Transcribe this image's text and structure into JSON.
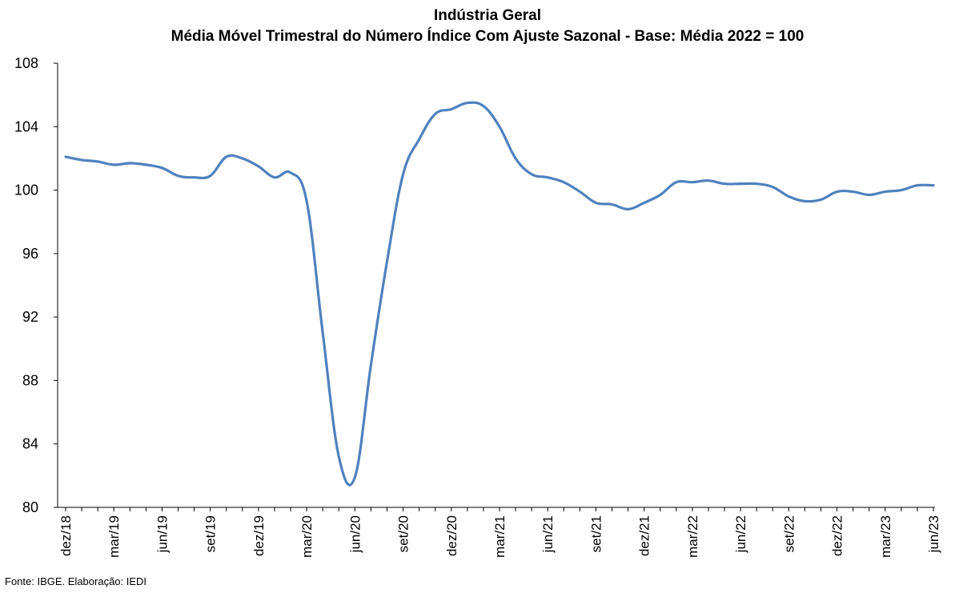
{
  "chart_data": {
    "type": "line",
    "title": "Indústria Geral",
    "subtitle": "Média Móvel Trimestral do Número Índice Com Ajuste Sazonal - Base: Média 2022 = 100",
    "xlabel": "",
    "ylabel": "",
    "ylim": [
      80,
      108
    ],
    "yticks": [
      80,
      84,
      88,
      92,
      96,
      100,
      104,
      108
    ],
    "grid": false,
    "legend": "none",
    "line_color": "#4F81BD",
    "x": [
      "dez/18",
      "jan/19",
      "fev/19",
      "mar/19",
      "abr/19",
      "mai/19",
      "jun/19",
      "jul/19",
      "ago/19",
      "set/19",
      "out/19",
      "nov/19",
      "dez/19",
      "jan/20",
      "fev/20",
      "mar/20",
      "abr/20",
      "mai/20",
      "jun/20",
      "jul/20",
      "ago/20",
      "set/20",
      "out/20",
      "nov/20",
      "dez/20",
      "jan/21",
      "fev/21",
      "mar/21",
      "abr/21",
      "mai/21",
      "jun/21",
      "jul/21",
      "ago/21",
      "set/21",
      "out/21",
      "nov/21",
      "dez/21",
      "jan/22",
      "fev/22",
      "mar/22",
      "abr/22",
      "mai/22",
      "jun/22",
      "jul/22",
      "ago/22",
      "set/22",
      "out/22",
      "nov/22",
      "dez/22",
      "jan/23",
      "fev/23",
      "mar/23",
      "abr/23",
      "mai/23",
      "jun/23"
    ],
    "x_tick_labels": [
      "dez/18",
      "mar/19",
      "jun/19",
      "set/19",
      "dez/19",
      "mar/20",
      "jun/20",
      "set/20",
      "dez/20",
      "mar/21",
      "jun/21",
      "set/21",
      "dez/21",
      "mar/22",
      "jun/22",
      "set/22",
      "dez/22",
      "mar/23",
      "jun/23"
    ],
    "series": [
      {
        "values": [
          102.1,
          101.9,
          101.8,
          101.6,
          101.7,
          101.6,
          101.4,
          100.9,
          100.8,
          100.9,
          102.1,
          102.0,
          101.5,
          100.8,
          101.1,
          99.3,
          91.0,
          83.2,
          81.9,
          89.0,
          95.5,
          101.0,
          103.2,
          104.8,
          105.1,
          105.5,
          105.3,
          104.0,
          102.0,
          101.0,
          100.8,
          100.5,
          99.9,
          99.2,
          99.1,
          98.8,
          99.2,
          99.7,
          100.5,
          100.5,
          100.6,
          100.4,
          100.4,
          100.4,
          100.2,
          99.6,
          99.3,
          99.4,
          99.9,
          99.9,
          99.7,
          99.9,
          100.0,
          100.3,
          100.3
        ]
      }
    ]
  },
  "footer": {
    "source": "Fonte: IBGE. Elaboração: IEDI"
  }
}
